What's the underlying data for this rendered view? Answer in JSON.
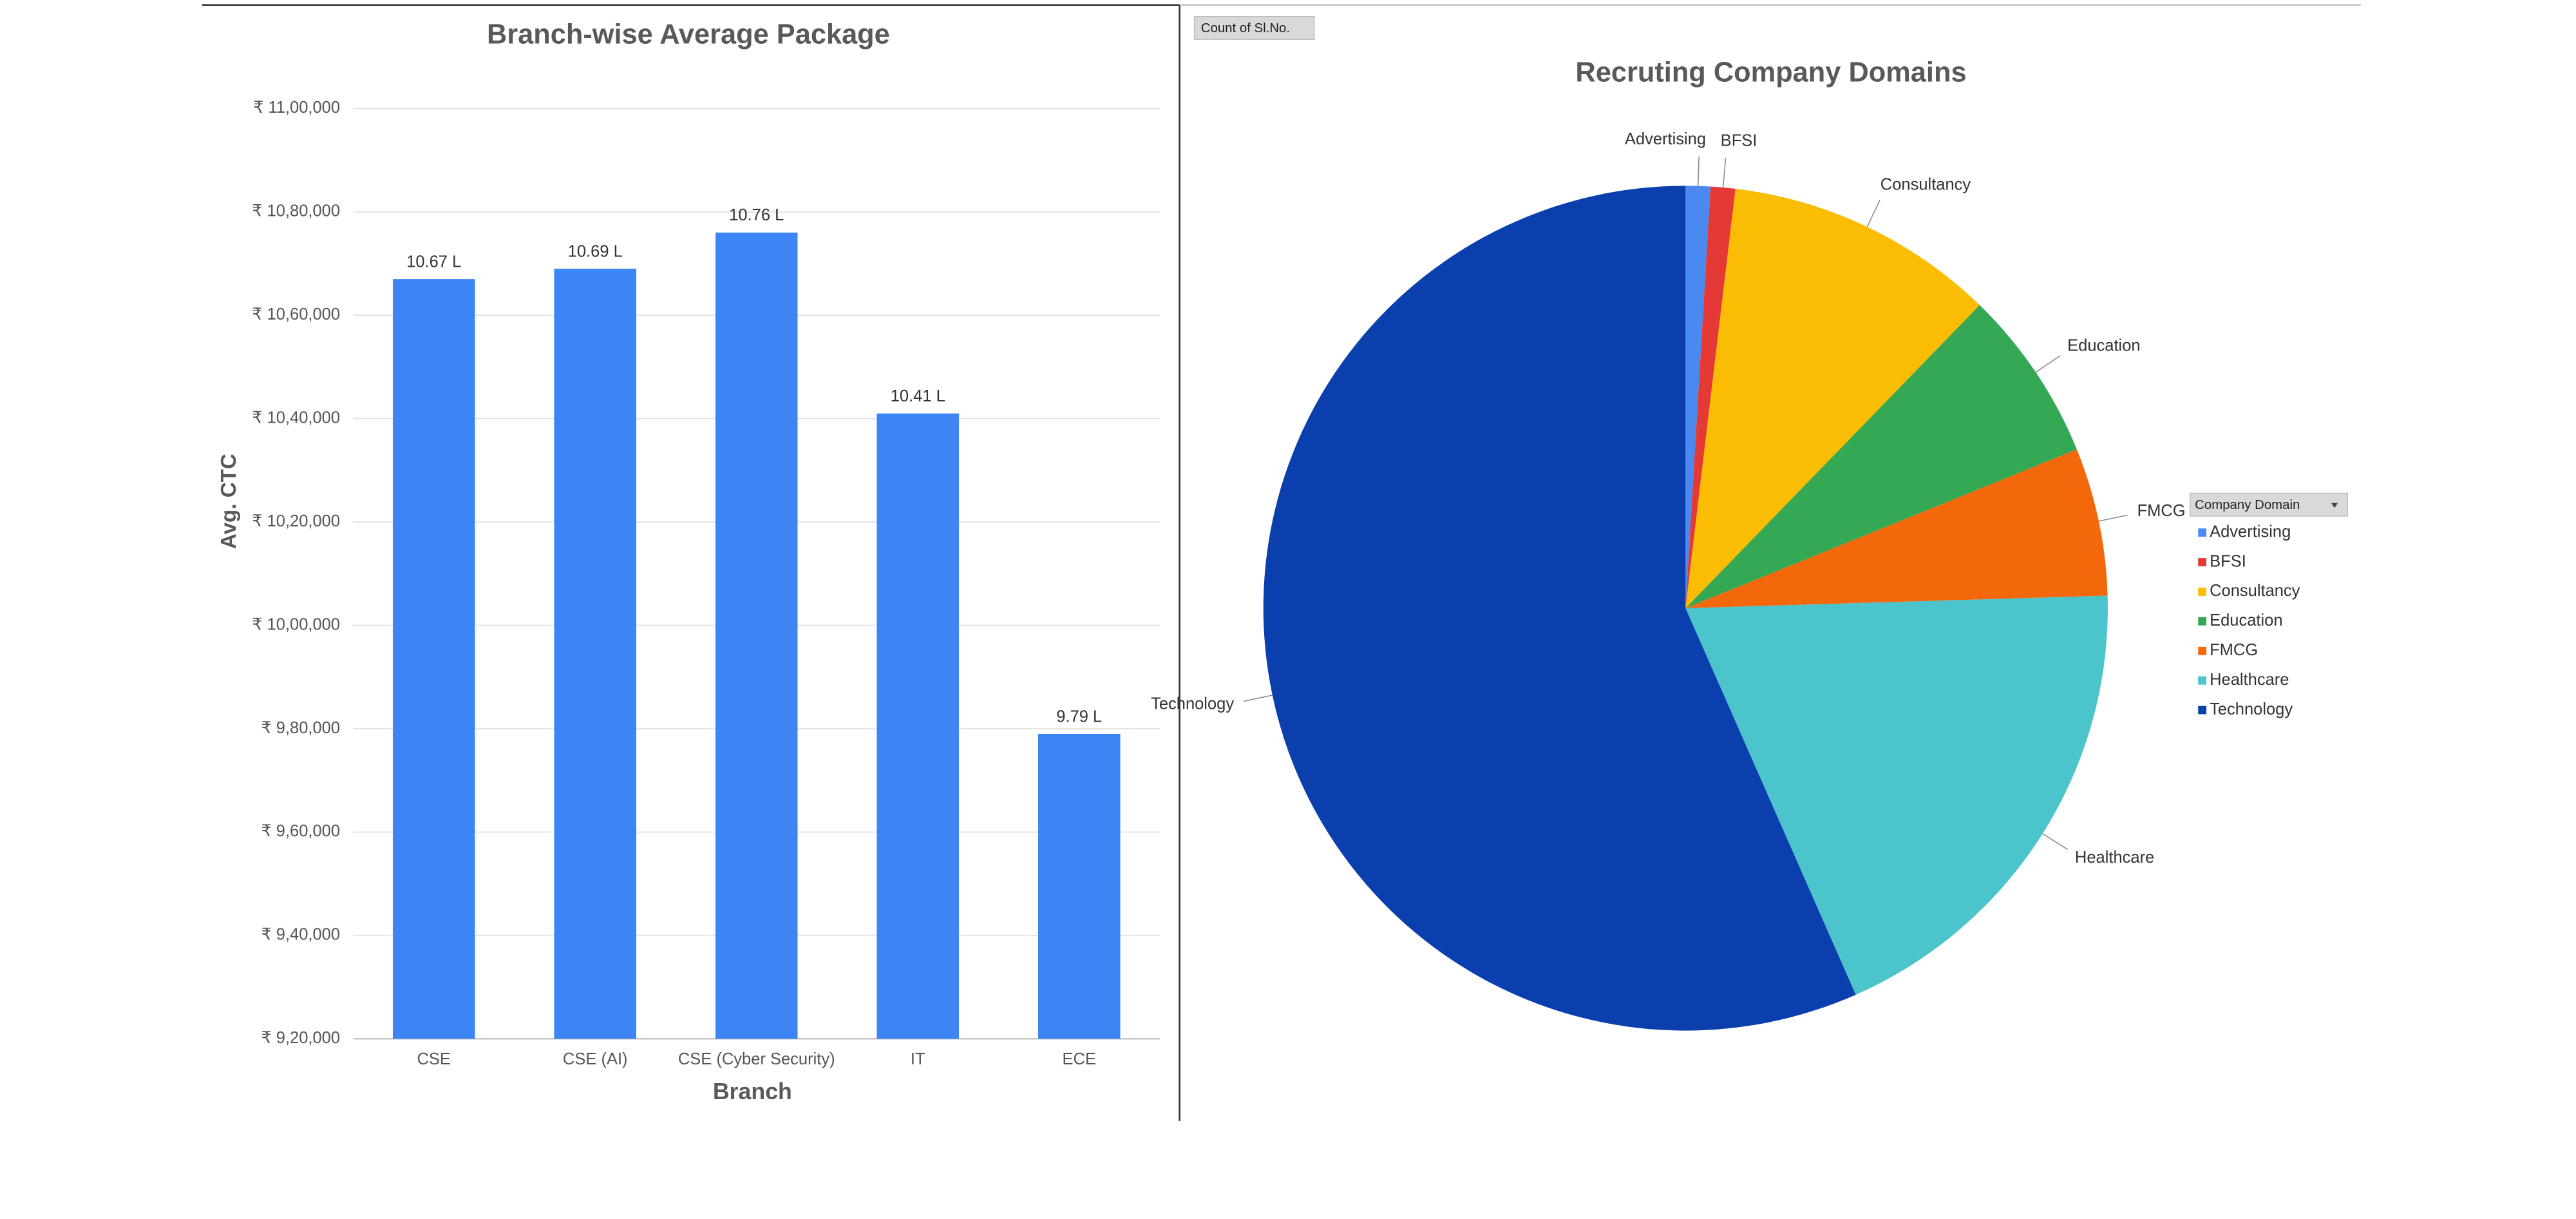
{
  "chart_data": [
    {
      "type": "bar",
      "title": "Branch-wise Average Package",
      "x_label": "Branch",
      "y_label": "Avg. CTC",
      "categories": [
        "CSE",
        "CSE (AI)",
        "CSE (Cyber Security)",
        "IT",
        "ECE"
      ],
      "values": [
        1067000,
        1069000,
        1076000,
        1041000,
        979000
      ],
      "value_labels": [
        "10.67 L",
        "10.69 L",
        "10.76 L",
        "10.41 L",
        "9.79 L"
      ],
      "color": "#3d85f5",
      "ylim": [
        920000,
        1100000
      ],
      "yticks": [
        {
          "value": 920000,
          "label": "₹ 9,20,000"
        },
        {
          "value": 940000,
          "label": "₹ 9,40,000"
        },
        {
          "value": 960000,
          "label": "₹ 9,60,000"
        },
        {
          "value": 980000,
          "label": "₹ 9,80,000"
        },
        {
          "value": 1000000,
          "label": "₹ 10,00,000"
        },
        {
          "value": 1020000,
          "label": "₹ 10,20,000"
        },
        {
          "value": 1040000,
          "label": "₹ 10,40,000"
        },
        {
          "value": 1060000,
          "label": "₹ 10,60,000"
        },
        {
          "value": 1080000,
          "label": "₹ 10,80,000"
        },
        {
          "value": 1100000,
          "label": "₹ 11,00,000"
        }
      ],
      "grid": true
    },
    {
      "type": "pie",
      "title": "Recruting Company Domains",
      "field_button": "Count of Sl.No.",
      "legend_title": "Company Domain",
      "categories": [
        "Advertising",
        "BFSI",
        "Consultancy",
        "Education",
        "FMCG",
        "Healthcare",
        "Technology"
      ],
      "values": [
        1,
        1,
        11,
        7,
        6,
        20,
        60
      ],
      "colors": [
        "#4a8af0",
        "#e53935",
        "#fbbc04",
        "#34a853",
        "#f4680c",
        "#4cc4cc",
        "#0b3fae"
      ],
      "legend": "right"
    }
  ]
}
